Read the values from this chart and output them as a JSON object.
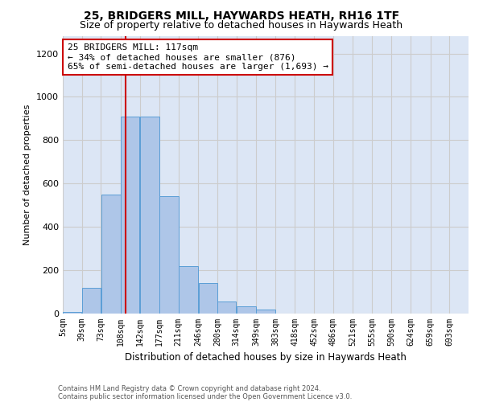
{
  "title_line1": "25, BRIDGERS MILL, HAYWARDS HEATH, RH16 1TF",
  "title_line2": "Size of property relative to detached houses in Haywards Heath",
  "xlabel": "Distribution of detached houses by size in Haywards Heath",
  "ylabel": "Number of detached properties",
  "footer_line1": "Contains HM Land Registry data © Crown copyright and database right 2024.",
  "footer_line2": "Contains public sector information licensed under the Open Government Licence v3.0.",
  "bar_labels": [
    "5sqm",
    "39sqm",
    "73sqm",
    "108sqm",
    "142sqm",
    "177sqm",
    "211sqm",
    "246sqm",
    "280sqm",
    "314sqm",
    "349sqm",
    "383sqm",
    "418sqm",
    "452sqm",
    "486sqm",
    "521sqm",
    "555sqm",
    "590sqm",
    "624sqm",
    "659sqm",
    "693sqm"
  ],
  "bar_values": [
    8,
    120,
    550,
    910,
    910,
    540,
    220,
    140,
    55,
    32,
    20,
    0,
    0,
    0,
    0,
    0,
    0,
    0,
    0,
    0,
    0
  ],
  "bar_color": "#aec6e8",
  "bar_edgecolor": "#5a9ed6",
  "annotation_text": "25 BRIDGERS MILL: 117sqm\n← 34% of detached houses are smaller (876)\n65% of semi-detached houses are larger (1,693) →",
  "vline_x": 117,
  "vline_color": "#cc0000",
  "annotation_box_edgecolor": "#cc0000",
  "annotation_box_facecolor": "#ffffff",
  "ylim": [
    0,
    1280
  ],
  "yticks": [
    0,
    200,
    400,
    600,
    800,
    1000,
    1200
  ],
  "grid_color": "#cccccc",
  "bg_color": "#dce6f5",
  "title_fontsize": 10,
  "subtitle_fontsize": 9
}
